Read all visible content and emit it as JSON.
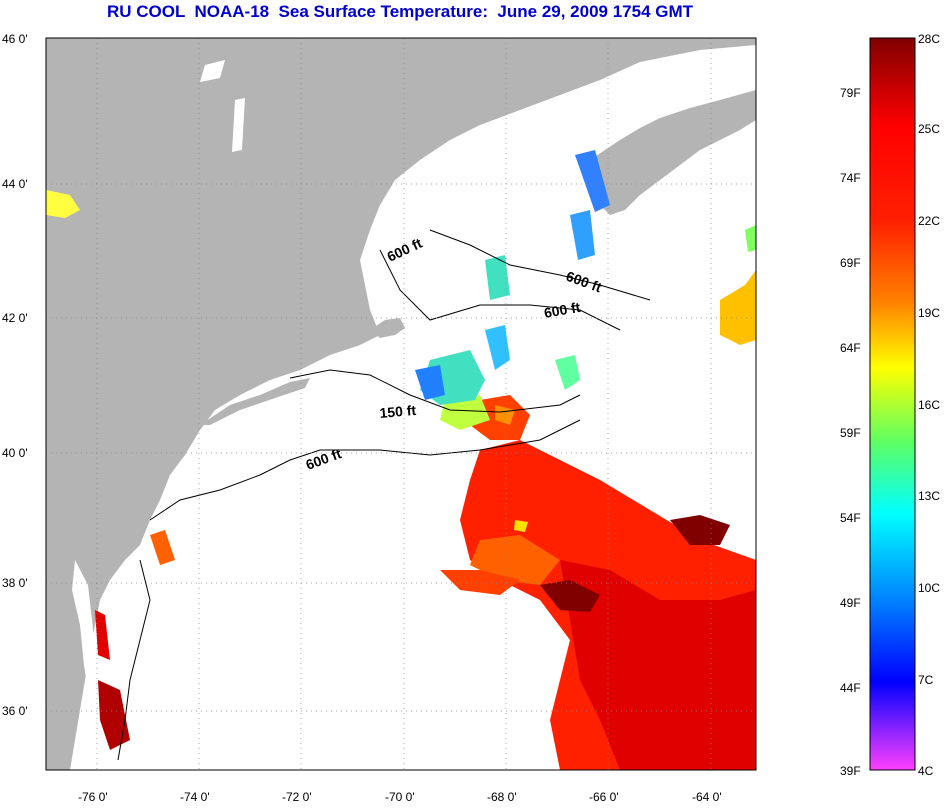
{
  "title": "RU COOL  NOAA-18  Sea Surface Temperature:  June 29, 2009 1754 GMT",
  "lat_ticks": [
    "46 0'",
    "44 0'",
    "42 0'",
    "40 0'",
    "38 0'",
    "36 0'"
  ],
  "lon_ticks": [
    "-76 0'",
    "-74 0'",
    "-72 0'",
    "-70 0'",
    "-68 0'",
    "-66 0'",
    "-64 0'"
  ],
  "depth_contours": {
    "labels": [
      "600 ft",
      "600 ft",
      "600 ft",
      "150 ft",
      "600 ft"
    ]
  },
  "colorbar": {
    "fahrenheit": [
      "79F",
      "74F",
      "69F",
      "64F",
      "59F",
      "54F",
      "49F",
      "44F",
      "39F"
    ],
    "celsius": [
      "28C",
      "25C",
      "22C",
      "19C",
      "16C",
      "13C",
      "10C",
      "7C",
      "4C"
    ],
    "gradient": [
      "#800000",
      "#ff0000",
      "#ff8000",
      "#ffff00",
      "#40ff80",
      "#00ffff",
      "#0080ff",
      "#0000ff",
      "#ff40ff"
    ]
  },
  "colors": {
    "land": "#b4b4b4",
    "ocean": "#ffffff",
    "title": "#0000cc"
  }
}
